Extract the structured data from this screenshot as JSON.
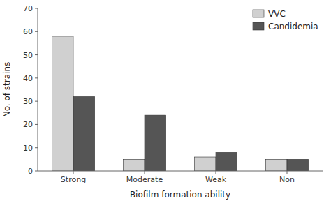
{
  "chart_data": {
    "type": "bar",
    "categories": [
      "Strong",
      "Moderate",
      "Weak",
      "Non"
    ],
    "series": [
      {
        "name": "VVC",
        "color": "#d0d0d0",
        "values": [
          58,
          5,
          6,
          5
        ]
      },
      {
        "name": "Candidemia",
        "color": "#555555",
        "values": [
          32,
          24,
          8,
          5
        ]
      }
    ],
    "xlabel": "Biofilm formation ability",
    "ylabel": "No. of strains",
    "ylim": [
      0,
      70
    ],
    "yticks": [
      0,
      10,
      20,
      30,
      40,
      50,
      60,
      70
    ],
    "legend": "upper right",
    "grid": false
  }
}
